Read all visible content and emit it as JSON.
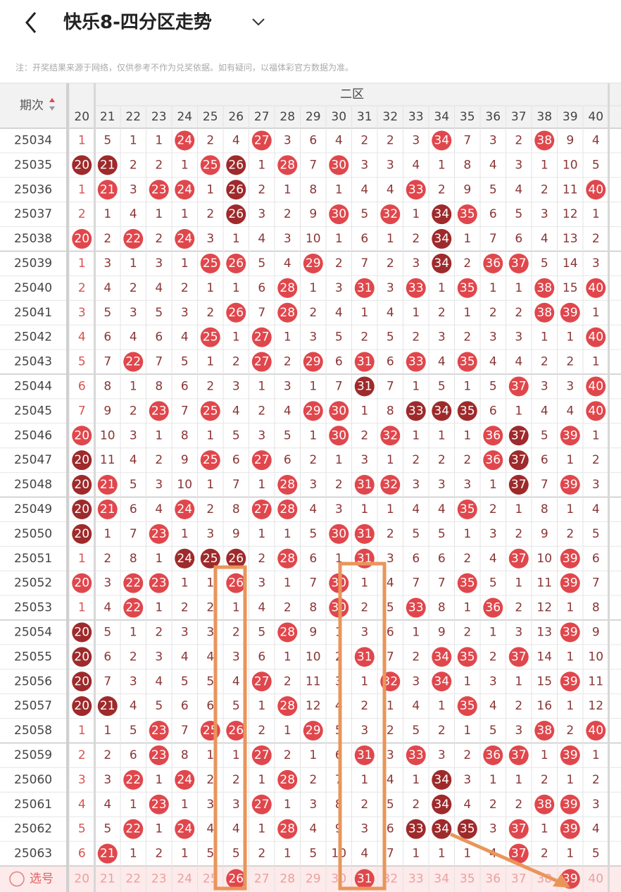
{
  "header": {
    "title": "快乐8-四分区走势"
  },
  "notice": "注：开奖结果来源于网络，仅供参考不作为兑奖依据。如有疑问，以福体彩官方数据为准。",
  "table": {
    "period_label": "期次",
    "zone_label": "二区",
    "columns": [
      20,
      21,
      22,
      23,
      24,
      25,
      26,
      27,
      28,
      29,
      30,
      31,
      32,
      33,
      34,
      35,
      36,
      37,
      38,
      39,
      40
    ],
    "rows": [
      {
        "period": "25034",
        "cells": [
          1,
          5,
          1,
          1,
          24,
          2,
          4,
          27,
          3,
          6,
          4,
          2,
          2,
          3,
          34,
          7,
          3,
          2,
          38,
          9,
          4
        ],
        "dark": []
      },
      {
        "period": "25035",
        "cells": [
          20,
          21,
          2,
          2,
          1,
          25,
          26,
          1,
          28,
          7,
          30,
          3,
          3,
          4,
          1,
          8,
          4,
          3,
          1,
          10,
          5
        ],
        "dark": [
          20,
          21,
          26
        ]
      },
      {
        "period": "25036",
        "cells": [
          1,
          21,
          3,
          23,
          24,
          1,
          26,
          2,
          1,
          8,
          1,
          4,
          4,
          33,
          2,
          9,
          5,
          4,
          2,
          11,
          40
        ],
        "dark": [
          26
        ]
      },
      {
        "period": "25037",
        "cells": [
          2,
          1,
          4,
          1,
          1,
          2,
          26,
          3,
          2,
          9,
          30,
          5,
          32,
          1,
          34,
          35,
          6,
          5,
          3,
          12,
          1
        ],
        "dark": [
          26,
          34
        ]
      },
      {
        "period": "25038",
        "cells": [
          20,
          2,
          22,
          2,
          24,
          3,
          1,
          4,
          3,
          10,
          1,
          6,
          1,
          2,
          34,
          1,
          7,
          6,
          4,
          13,
          2
        ],
        "dark": [
          34
        ]
      },
      {
        "period": "25039",
        "cells": [
          1,
          3,
          1,
          3,
          1,
          25,
          26,
          5,
          4,
          29,
          2,
          7,
          2,
          3,
          34,
          2,
          36,
          37,
          5,
          14,
          3
        ],
        "dark": [
          34
        ]
      },
      {
        "period": "25040",
        "cells": [
          2,
          4,
          2,
          4,
          2,
          1,
          1,
          6,
          28,
          1,
          3,
          31,
          3,
          33,
          1,
          35,
          1,
          1,
          38,
          15,
          40
        ],
        "dark": []
      },
      {
        "period": "25041",
        "cells": [
          3,
          5,
          3,
          5,
          3,
          2,
          26,
          7,
          28,
          2,
          4,
          1,
          4,
          1,
          2,
          1,
          2,
          2,
          38,
          39,
          1
        ],
        "dark": []
      },
      {
        "period": "25042",
        "cells": [
          4,
          6,
          4,
          6,
          4,
          25,
          1,
          27,
          1,
          3,
          5,
          2,
          5,
          2,
          3,
          2,
          3,
          3,
          1,
          1,
          40
        ],
        "dark": []
      },
      {
        "period": "25043",
        "cells": [
          5,
          7,
          22,
          7,
          5,
          1,
          2,
          27,
          2,
          29,
          6,
          31,
          6,
          33,
          4,
          35,
          4,
          4,
          2,
          2,
          1
        ],
        "dark": []
      },
      {
        "period": "25044",
        "cells": [
          6,
          8,
          1,
          8,
          6,
          2,
          3,
          1,
          3,
          1,
          7,
          31,
          7,
          1,
          5,
          1,
          5,
          37,
          3,
          3,
          40
        ],
        "dark": [
          31
        ]
      },
      {
        "period": "25045",
        "cells": [
          7,
          9,
          2,
          23,
          7,
          25,
          4,
          2,
          4,
          29,
          30,
          1,
          8,
          33,
          34,
          35,
          6,
          1,
          4,
          4,
          40
        ],
        "dark": [
          33,
          34,
          35
        ]
      },
      {
        "period": "25046",
        "cells": [
          20,
          10,
          3,
          1,
          8,
          1,
          5,
          3,
          5,
          1,
          30,
          2,
          32,
          1,
          1,
          1,
          36,
          37,
          5,
          39,
          1
        ],
        "dark": [
          37
        ]
      },
      {
        "period": "25047",
        "cells": [
          20,
          11,
          4,
          2,
          9,
          25,
          6,
          27,
          6,
          2,
          1,
          3,
          1,
          2,
          2,
          2,
          36,
          37,
          6,
          1,
          2
        ],
        "dark": [
          20,
          37
        ]
      },
      {
        "period": "25048",
        "cells": [
          20,
          21,
          5,
          3,
          10,
          1,
          7,
          1,
          28,
          3,
          2,
          31,
          32,
          3,
          3,
          3,
          1,
          37,
          7,
          39,
          3
        ],
        "dark": [
          20,
          37
        ]
      },
      {
        "period": "25049",
        "cells": [
          20,
          21,
          6,
          4,
          24,
          2,
          8,
          27,
          28,
          4,
          3,
          1,
          1,
          4,
          4,
          35,
          2,
          1,
          8,
          1,
          4
        ],
        "dark": [
          20
        ]
      },
      {
        "period": "25050",
        "cells": [
          20,
          1,
          7,
          23,
          1,
          3,
          9,
          1,
          1,
          5,
          30,
          31,
          2,
          5,
          5,
          1,
          3,
          2,
          9,
          2,
          5
        ],
        "dark": [
          20
        ]
      },
      {
        "period": "25051",
        "cells": [
          1,
          2,
          8,
          1,
          24,
          25,
          26,
          2,
          28,
          6,
          1,
          31,
          3,
          6,
          6,
          2,
          4,
          37,
          10,
          39,
          6
        ],
        "dark": [
          24,
          25,
          26
        ]
      },
      {
        "period": "25052",
        "cells": [
          20,
          3,
          22,
          23,
          1,
          1,
          26,
          3,
          1,
          7,
          30,
          1,
          4,
          7,
          7,
          35,
          5,
          1,
          11,
          39,
          7
        ],
        "dark": []
      },
      {
        "period": "25053",
        "cells": [
          1,
          4,
          22,
          1,
          2,
          2,
          1,
          4,
          2,
          8,
          30,
          2,
          5,
          33,
          8,
          1,
          36,
          2,
          12,
          1,
          8
        ],
        "dark": []
      },
      {
        "period": "25054",
        "cells": [
          20,
          5,
          1,
          2,
          3,
          3,
          2,
          5,
          28,
          9,
          1,
          3,
          6,
          1,
          9,
          2,
          1,
          3,
          13,
          39,
          9
        ],
        "dark": [
          20
        ]
      },
      {
        "period": "25055",
        "cells": [
          20,
          6,
          2,
          3,
          4,
          4,
          3,
          6,
          1,
          10,
          2,
          31,
          7,
          2,
          34,
          35,
          2,
          37,
          14,
          1,
          10
        ],
        "dark": [
          20
        ]
      },
      {
        "period": "25056",
        "cells": [
          20,
          7,
          3,
          4,
          5,
          5,
          4,
          27,
          2,
          11,
          3,
          1,
          32,
          3,
          34,
          1,
          3,
          1,
          15,
          39,
          11
        ],
        "dark": [
          20
        ]
      },
      {
        "period": "25057",
        "cells": [
          20,
          21,
          4,
          5,
          6,
          6,
          5,
          1,
          28,
          12,
          4,
          2,
          1,
          4,
          1,
          35,
          4,
          2,
          16,
          1,
          12
        ],
        "dark": [
          20,
          21
        ]
      },
      {
        "period": "25058",
        "cells": [
          1,
          1,
          5,
          23,
          7,
          25,
          26,
          2,
          1,
          29,
          5,
          3,
          2,
          5,
          2,
          1,
          5,
          3,
          38,
          2,
          40
        ],
        "dark": []
      },
      {
        "period": "25059",
        "cells": [
          2,
          2,
          6,
          23,
          8,
          1,
          1,
          27,
          2,
          1,
          6,
          31,
          3,
          33,
          3,
          2,
          36,
          37,
          1,
          39,
          1
        ],
        "dark": []
      },
      {
        "period": "25060",
        "cells": [
          3,
          3,
          22,
          1,
          24,
          2,
          2,
          1,
          28,
          2,
          7,
          1,
          4,
          1,
          34,
          3,
          1,
          1,
          2,
          1,
          2
        ],
        "dark": [
          34
        ]
      },
      {
        "period": "25061",
        "cells": [
          4,
          4,
          1,
          23,
          1,
          3,
          3,
          27,
          1,
          3,
          8,
          2,
          5,
          2,
          34,
          4,
          2,
          2,
          38,
          39,
          3
        ],
        "dark": [
          34
        ]
      },
      {
        "period": "25062",
        "cells": [
          5,
          5,
          22,
          1,
          24,
          4,
          4,
          1,
          28,
          4,
          9,
          3,
          6,
          33,
          34,
          35,
          3,
          37,
          1,
          39,
          4
        ],
        "dark": [
          33,
          34,
          35
        ]
      },
      {
        "period": "25063",
        "cells": [
          6,
          21,
          1,
          2,
          1,
          5,
          5,
          2,
          1,
          5,
          10,
          4,
          7,
          1,
          1,
          1,
          4,
          37,
          2,
          1,
          5
        ],
        "dark": []
      }
    ],
    "footer": {
      "label": "选号",
      "numbers": [
        20,
        21,
        22,
        23,
        24,
        25,
        26,
        27,
        28,
        29,
        30,
        31,
        32,
        33,
        34,
        35,
        36,
        37,
        38,
        39,
        40
      ],
      "selected": [
        26,
        31,
        39
      ]
    }
  }
}
